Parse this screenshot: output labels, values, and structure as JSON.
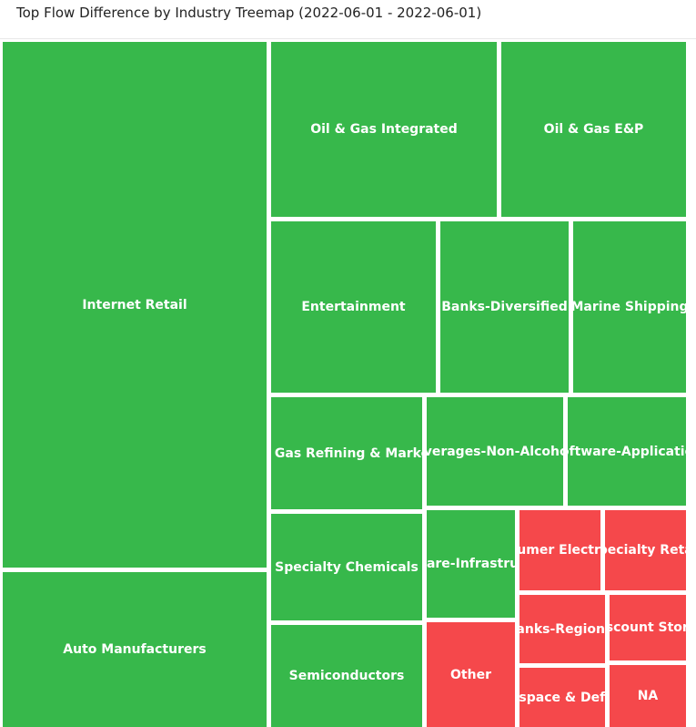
{
  "title": "Top Flow Difference by Industry Treemap (2022-06-01 - 2022-06-01)",
  "colors": {
    "positive": "#37b84b",
    "negative": "#f5484b"
  },
  "chart_data": {
    "type": "treemap",
    "title": "Top Flow Difference by Industry Treemap (2022-06-01 - 2022-06-01)",
    "tiles": [
      {
        "label": "Internet Retail",
        "sign": "positive"
      },
      {
        "label": "Auto Manufacturers",
        "sign": "positive"
      },
      {
        "label": "Oil & Gas Integrated",
        "sign": "positive"
      },
      {
        "label": "Oil & Gas E&P",
        "sign": "positive"
      },
      {
        "label": "Entertainment",
        "sign": "positive"
      },
      {
        "label": "Banks-Diversified",
        "sign": "positive"
      },
      {
        "label": "Marine Shipping",
        "sign": "positive"
      },
      {
        "label": "Oil & Gas Refining & Marketing",
        "sign": "positive"
      },
      {
        "label": "Beverages-Non-Alcoholic",
        "sign": "positive"
      },
      {
        "label": "Software-Application",
        "sign": "positive"
      },
      {
        "label": "Specialty Chemicals",
        "sign": "positive"
      },
      {
        "label": "Semiconductors",
        "sign": "positive"
      },
      {
        "label": "Software-Infrastructure",
        "sign": "positive"
      },
      {
        "label": "Consumer Electronics",
        "sign": "negative"
      },
      {
        "label": "Specialty Retail",
        "sign": "negative"
      },
      {
        "label": "Banks-Regional",
        "sign": "negative"
      },
      {
        "label": "Discount Stores",
        "sign": "negative"
      },
      {
        "label": "Other",
        "sign": "negative"
      },
      {
        "label": "Aerospace & Defense",
        "sign": "negative"
      },
      {
        "label": "NA",
        "sign": "negative"
      }
    ]
  }
}
